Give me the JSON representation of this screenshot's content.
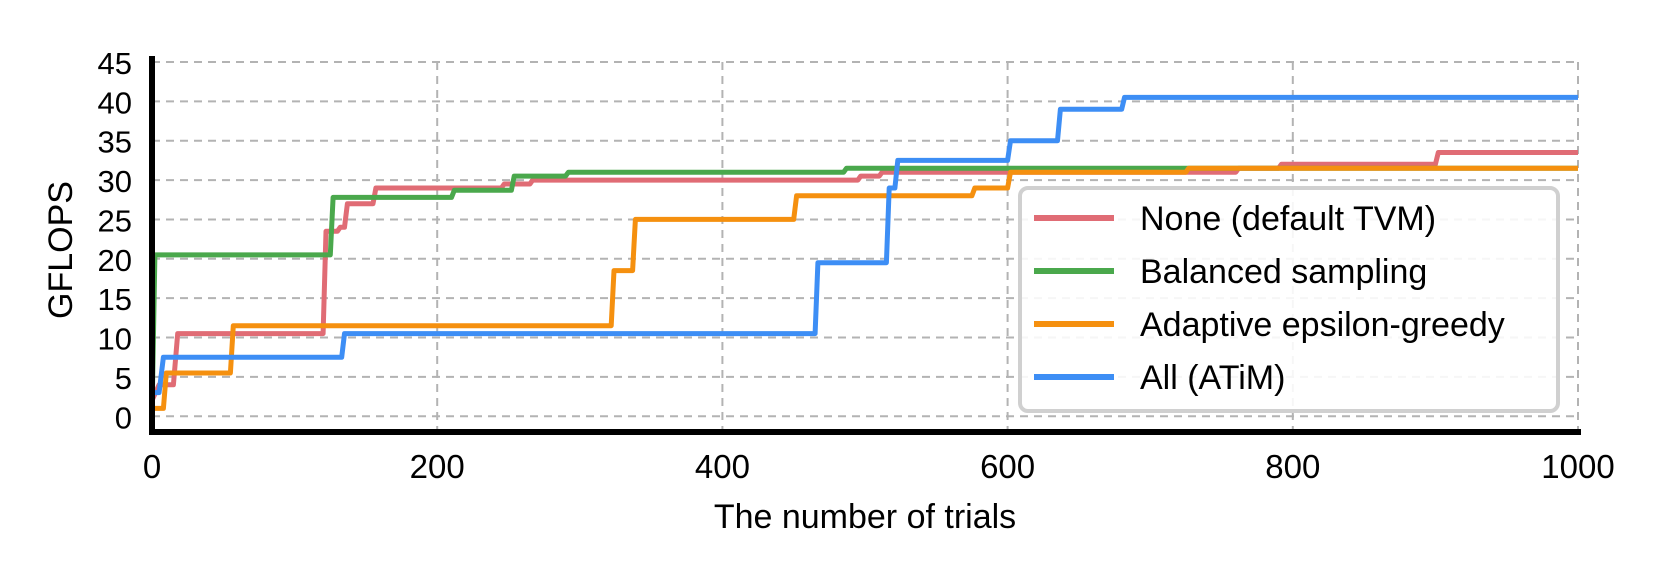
{
  "chart_data": {
    "type": "line",
    "title": "",
    "xlabel": "The number of trials",
    "ylabel": "GFLOPS",
    "xlim": [
      0,
      1000
    ],
    "ylim": [
      -2,
      45
    ],
    "xticks": [
      0,
      200,
      400,
      600,
      800,
      1000
    ],
    "yticks": [
      0,
      5,
      10,
      15,
      20,
      25,
      30,
      35,
      40,
      45
    ],
    "grid": true,
    "legend_position": "right",
    "series": [
      {
        "name": "None (default TVM)",
        "color": "#e06c75",
        "points": [
          [
            0,
            2
          ],
          [
            5,
            4
          ],
          [
            15,
            4
          ],
          [
            18,
            10.5
          ],
          [
            120,
            10.5
          ],
          [
            122,
            23.5
          ],
          [
            130,
            23.5
          ],
          [
            132,
            24
          ],
          [
            135,
            24
          ],
          [
            137,
            27
          ],
          [
            155,
            27
          ],
          [
            157,
            29
          ],
          [
            245,
            29
          ],
          [
            247,
            29.5
          ],
          [
            265,
            29.5
          ],
          [
            267,
            30
          ],
          [
            495,
            30
          ],
          [
            497,
            30.5
          ],
          [
            510,
            30.5
          ],
          [
            512,
            31
          ],
          [
            760,
            31
          ],
          [
            762,
            31.5
          ],
          [
            790,
            31.5
          ],
          [
            792,
            32
          ],
          [
            900,
            32
          ],
          [
            902,
            33.5
          ],
          [
            1000,
            33.5
          ]
        ]
      },
      {
        "name": "Balanced sampling",
        "color": "#4aa84c",
        "points": [
          [
            0,
            0
          ],
          [
            2,
            20.5
          ],
          [
            125,
            20.5
          ],
          [
            127,
            27.8
          ],
          [
            210,
            27.8
          ],
          [
            212,
            28.7
          ],
          [
            252,
            28.7
          ],
          [
            254,
            30.5
          ],
          [
            290,
            30.5
          ],
          [
            292,
            31
          ],
          [
            485,
            31
          ],
          [
            487,
            31.5
          ],
          [
            1000,
            31.5
          ]
        ]
      },
      {
        "name": "Adaptive epsilon-greedy",
        "color": "#f5900f",
        "points": [
          [
            0,
            1
          ],
          [
            8,
            1
          ],
          [
            10,
            5.5
          ],
          [
            55,
            5.5
          ],
          [
            57,
            11.5
          ],
          [
            322,
            11.5
          ],
          [
            324,
            18.5
          ],
          [
            337,
            18.5
          ],
          [
            339,
            25
          ],
          [
            450,
            25
          ],
          [
            452,
            28
          ],
          [
            575,
            28
          ],
          [
            577,
            29
          ],
          [
            600,
            29
          ],
          [
            602,
            31
          ],
          [
            725,
            31
          ],
          [
            727,
            31.5
          ],
          [
            1000,
            31.5
          ]
        ]
      },
      {
        "name": "All (ATiM)",
        "color": "#3d8ef5",
        "points": [
          [
            0,
            3
          ],
          [
            5,
            3
          ],
          [
            8,
            7.5
          ],
          [
            133,
            7.5
          ],
          [
            135,
            10.5
          ],
          [
            465,
            10.5
          ],
          [
            467,
            19.5
          ],
          [
            515,
            19.5
          ],
          [
            517,
            29
          ],
          [
            521,
            29
          ],
          [
            523,
            32.5
          ],
          [
            600,
            32.5
          ],
          [
            602,
            35
          ],
          [
            635,
            35
          ],
          [
            637,
            39
          ],
          [
            680,
            39
          ],
          [
            682,
            40.5
          ],
          [
            1000,
            40.5
          ]
        ]
      }
    ]
  }
}
